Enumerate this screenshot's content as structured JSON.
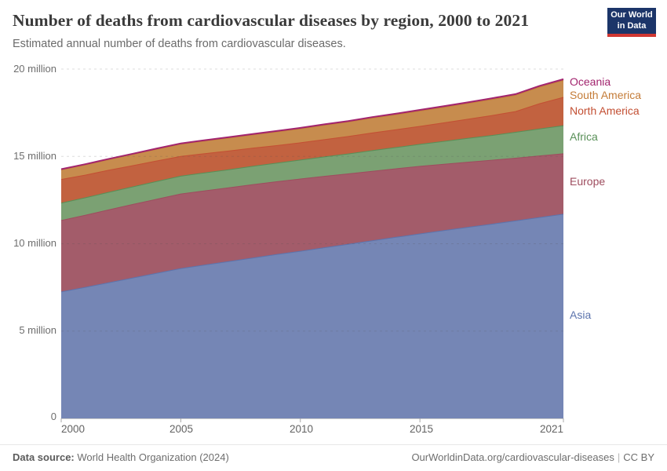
{
  "header": {
    "title": "Number of deaths from cardiovascular diseases by region, 2000 to 2021",
    "subtitle": "Estimated annual number of deaths from cardiovascular diseases.",
    "logo": {
      "line1": "Our World",
      "line2": "in Data",
      "bg": "#1c3569",
      "accent": "#d03732"
    }
  },
  "chart_data": {
    "type": "area",
    "stacked": true,
    "title": "Number of deaths from cardiovascular diseases by region, 2000 to 2021",
    "xlabel": "",
    "ylabel": "",
    "unit": "deaths (millions)",
    "xlim": [
      2000,
      2021
    ],
    "ylim": [
      0,
      20
    ],
    "grid": "dashed-horizontal",
    "legend_position": "right",
    "x": [
      2000,
      2001,
      2002,
      2003,
      2004,
      2005,
      2006,
      2007,
      2008,
      2009,
      2010,
      2011,
      2012,
      2013,
      2014,
      2015,
      2016,
      2017,
      2018,
      2019,
      2020,
      2021
    ],
    "series": [
      {
        "name": "Asia",
        "color": "#7586b5",
        "label_color": "#5c74ad",
        "values": [
          7.24,
          7.5,
          7.77,
          8.04,
          8.31,
          8.58,
          8.78,
          8.98,
          9.18,
          9.38,
          9.57,
          9.77,
          9.97,
          10.17,
          10.37,
          10.56,
          10.75,
          10.94,
          11.12,
          11.31,
          11.5,
          11.69
        ]
      },
      {
        "name": "Europe",
        "color": "#a35c6a",
        "label_color": "#9e4c5e",
        "values": [
          4.09,
          4.13,
          4.17,
          4.21,
          4.24,
          4.27,
          4.25,
          4.22,
          4.2,
          4.17,
          4.14,
          4.09,
          4.03,
          3.98,
          3.92,
          3.87,
          3.8,
          3.73,
          3.66,
          3.59,
          3.53,
          3.46
        ]
      },
      {
        "name": "Africa",
        "color": "#7ba173",
        "label_color": "#588f57",
        "values": [
          1.0,
          1.0,
          1.01,
          1.01,
          1.02,
          1.02,
          1.03,
          1.04,
          1.05,
          1.06,
          1.08,
          1.11,
          1.14,
          1.18,
          1.22,
          1.26,
          1.31,
          1.36,
          1.42,
          1.48,
          1.54,
          1.61
        ]
      },
      {
        "name": "North America",
        "color": "#c26240",
        "label_color": "#c34f33",
        "values": [
          1.35,
          1.3,
          1.26,
          1.21,
          1.17,
          1.13,
          1.1,
          1.07,
          1.04,
          1.01,
          0.99,
          0.99,
          1.0,
          1.01,
          1.02,
          1.03,
          1.06,
          1.1,
          1.14,
          1.19,
          1.45,
          1.62
        ]
      },
      {
        "name": "South America",
        "color": "#c78c4e",
        "label_color": "#c47c38",
        "values": [
          0.55,
          0.58,
          0.61,
          0.64,
          0.67,
          0.7,
          0.72,
          0.74,
          0.76,
          0.78,
          0.8,
          0.82,
          0.83,
          0.85,
          0.86,
          0.88,
          0.89,
          0.9,
          0.92,
          0.93,
          0.95,
          0.97
        ]
      },
      {
        "name": "Oceania",
        "color": "#ad447c",
        "label_color": "#a2246e",
        "values": [
          0.04,
          0.041,
          0.042,
          0.044,
          0.045,
          0.046,
          0.048,
          0.049,
          0.05,
          0.052,
          0.053,
          0.055,
          0.056,
          0.058,
          0.059,
          0.061,
          0.062,
          0.064,
          0.066,
          0.067,
          0.069,
          0.07
        ]
      }
    ],
    "yticks": [
      {
        "value": 0,
        "label": "0"
      },
      {
        "value": 5,
        "label": "5 million"
      },
      {
        "value": 10,
        "label": "10 million"
      },
      {
        "value": 15,
        "label": "15 million"
      },
      {
        "value": 20,
        "label": "20 million"
      }
    ],
    "xticks": [
      {
        "value": 2000,
        "label": "2000"
      },
      {
        "value": 2005,
        "label": "2005"
      },
      {
        "value": 2010,
        "label": "2010"
      },
      {
        "value": 2015,
        "label": "2015"
      },
      {
        "value": 2021,
        "label": "2021"
      }
    ]
  },
  "footer": {
    "source_label": "Data source:",
    "source_value": "World Health Organization (2024)",
    "link": "OurWorldinData.org/cardiovascular-diseases",
    "separator": "|",
    "license": "CC BY"
  }
}
